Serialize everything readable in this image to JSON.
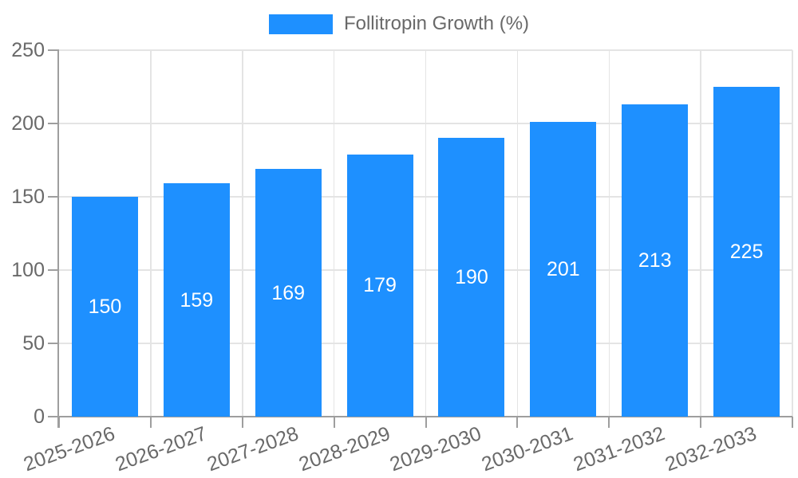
{
  "legend": {
    "label": "Follitropin Growth (%)",
    "swatch_color": "#1e90ff"
  },
  "chart_data": {
    "type": "bar",
    "title": "",
    "categories": [
      "2025-2026",
      "2026-2027",
      "2027-2028",
      "2028-2029",
      "2029-2030",
      "2030-2031",
      "2031-2032",
      "2032-2033"
    ],
    "series": [
      {
        "name": "Follitropin Growth (%)",
        "values": [
          150,
          159,
          169,
          179,
          190,
          201,
          213,
          225
        ]
      }
    ],
    "value_labels": [
      "150",
      "159",
      "169",
      "179",
      "190",
      "201",
      "213",
      "225"
    ],
    "xlabel": "",
    "ylabel": "",
    "ylim": [
      0,
      250
    ],
    "yticks": [
      0,
      50,
      100,
      150,
      200,
      250
    ],
    "grid": true,
    "legend_position": "top-center",
    "bar_color": "#1e90ff",
    "value_label_color": "#ffffff",
    "tick_label_color": "#696969",
    "grid_color": "#e4e4e4",
    "axis_color": "#9e9e9e",
    "x_label_rotation_deg": -20
  }
}
